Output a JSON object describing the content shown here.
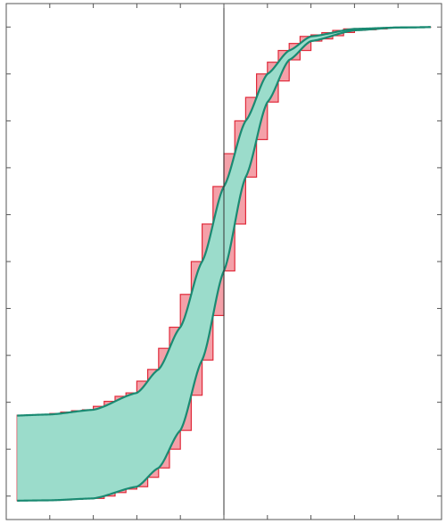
{
  "chart_data": {
    "type": "area",
    "title": "",
    "xlabel": "",
    "ylabel": "",
    "xlim": [
      -5,
      5
    ],
    "ylim": [
      -0.05,
      1.05
    ],
    "grid": false,
    "legend": "none",
    "vertical_line_x": 0,
    "envelope_lower_asymptote": {
      "upper_curve": 0.17,
      "lower_curve": -0.01
    },
    "upper_curve": {
      "x": [
        -5,
        -4,
        -3,
        -2,
        -1.5,
        -1,
        -0.5,
        0,
        0.5,
        1,
        1.5,
        2,
        3,
        4,
        5
      ],
      "y": [
        0.171,
        0.174,
        0.184,
        0.22,
        0.27,
        0.36,
        0.5,
        0.66,
        0.8,
        0.9,
        0.95,
        0.98,
        0.996,
        0.999,
        1.0
      ]
    },
    "lower_curve": {
      "x": [
        -5,
        -4,
        -3,
        -2,
        -1.5,
        -1,
        -0.5,
        0,
        0.5,
        1,
        1.5,
        2,
        3,
        4,
        5
      ],
      "y": [
        -0.01,
        -0.009,
        -0.005,
        0.02,
        0.06,
        0.14,
        0.29,
        0.48,
        0.68,
        0.84,
        0.93,
        0.97,
        0.993,
        0.999,
        1.0
      ]
    },
    "step_sets": {
      "upper": {
        "x_start": -5,
        "x_end": 5,
        "step_width": 0.25,
        "offset": -0.125
      },
      "lower": {
        "x_start": -5,
        "x_end": 5,
        "step_width": 0.25,
        "offset": 0.125
      }
    },
    "colors": {
      "band_fill": "#9bdccb",
      "curve_stroke": "#1a8a72",
      "step_fill": "#f4a0a8",
      "step_stroke": "#e02a3a",
      "axis": "#555555",
      "ref_line": "#333333"
    }
  }
}
